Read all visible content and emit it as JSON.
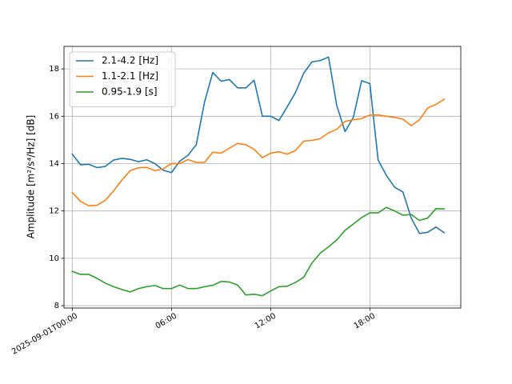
{
  "chart_data": {
    "type": "line",
    "title": "",
    "xlabel": "",
    "ylabel": "Amplitude [m²/s⁴/Hz] [dB]",
    "xlim": [
      -0.5,
      23.5
    ],
    "ylim": [
      7.9,
      18.95
    ],
    "grid": true,
    "legend_position": "upper-left",
    "x_ticks": [
      {
        "value": 0,
        "label": "2025-09-01T00:00"
      },
      {
        "value": 6,
        "label": "06:00"
      },
      {
        "value": 12,
        "label": "12:00"
      },
      {
        "value": 18,
        "label": "18:00"
      }
    ],
    "y_ticks": [
      8,
      10,
      12,
      14,
      16,
      18
    ],
    "x": [
      0,
      0.5,
      1,
      1.5,
      2,
      2.5,
      3,
      3.5,
      4,
      4.5,
      5,
      5.5,
      6,
      6.5,
      7,
      7.5,
      8,
      8.5,
      9,
      9.5,
      10,
      10.5,
      11,
      11.5,
      12,
      12.5,
      13,
      13.5,
      14,
      14.5,
      15,
      15.5,
      16,
      16.5,
      17,
      17.5,
      18,
      18.5,
      19,
      19.5,
      20,
      20.5,
      21,
      21.5,
      22,
      22.5
    ],
    "series": [
      {
        "name": "2.1-4.2 [Hz]",
        "color": "#1f77b4",
        "values": [
          14.4,
          13.95,
          13.97,
          13.83,
          13.88,
          14.15,
          14.22,
          14.18,
          14.08,
          14.16,
          14.0,
          13.72,
          13.62,
          14.1,
          14.35,
          14.8,
          16.6,
          17.85,
          17.48,
          17.55,
          17.2,
          17.2,
          17.52,
          16.0,
          16.0,
          15.82,
          16.4,
          17.0,
          17.82,
          18.3,
          18.35,
          18.5,
          16.45,
          15.35,
          15.95,
          17.5,
          17.38,
          14.15,
          13.5,
          13.0,
          12.8,
          11.7,
          11.05,
          11.1,
          11.32,
          11.08
        ]
      },
      {
        "name": "1.1-2.1 [Hz]",
        "color": "#ff7f0e",
        "values": [
          12.78,
          12.4,
          12.22,
          12.24,
          12.45,
          12.85,
          13.3,
          13.7,
          13.82,
          13.84,
          13.7,
          13.78,
          14.0,
          14.0,
          14.17,
          14.05,
          14.05,
          14.48,
          14.44,
          14.65,
          14.85,
          14.8,
          14.6,
          14.25,
          14.44,
          14.5,
          14.4,
          14.55,
          14.95,
          14.98,
          15.05,
          15.3,
          15.45,
          15.78,
          15.85,
          15.9,
          16.05,
          16.05,
          16.0,
          15.95,
          15.88,
          15.6,
          15.85,
          16.35,
          16.5,
          16.72
        ]
      },
      {
        "name": "0.95-1.9 [s]",
        "color": "#2ca02c",
        "values": [
          9.45,
          9.32,
          9.32,
          9.15,
          8.95,
          8.8,
          8.68,
          8.58,
          8.72,
          8.8,
          8.85,
          8.72,
          8.72,
          8.87,
          8.72,
          8.72,
          8.8,
          8.86,
          9.02,
          9.0,
          8.87,
          8.45,
          8.48,
          8.42,
          8.62,
          8.8,
          8.82,
          8.98,
          9.2,
          9.8,
          10.22,
          10.48,
          10.78,
          11.18,
          11.45,
          11.72,
          11.92,
          11.92,
          12.15,
          12.0,
          11.82,
          11.85,
          11.6,
          11.7,
          12.1,
          12.08
        ]
      }
    ]
  }
}
